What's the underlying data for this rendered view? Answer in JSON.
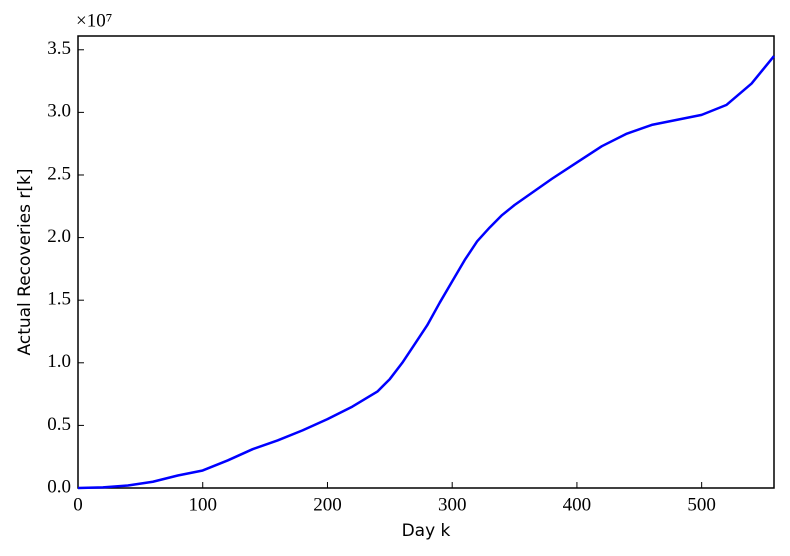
{
  "chart_data": {
    "type": "line",
    "xlabel": "Day k",
    "ylabel": "Actual Recoveries r[k]",
    "y_scale_label": "×10⁷",
    "color": "#0000ff",
    "x": [
      0,
      20,
      40,
      60,
      80,
      100,
      120,
      140,
      160,
      180,
      200,
      220,
      240,
      250,
      260,
      270,
      280,
      290,
      300,
      310,
      320,
      330,
      340,
      350,
      360,
      380,
      400,
      420,
      440,
      460,
      480,
      500,
      520,
      540,
      558
    ],
    "values": [
      0,
      0.005,
      0.02,
      0.05,
      0.1,
      0.14,
      0.22,
      0.31,
      0.38,
      0.46,
      0.55,
      0.65,
      0.77,
      0.87,
      1.0,
      1.15,
      1.3,
      1.48,
      1.65,
      1.82,
      1.97,
      2.08,
      2.18,
      2.26,
      2.33,
      2.47,
      2.6,
      2.73,
      2.83,
      2.9,
      2.94,
      2.98,
      3.06,
      3.23,
      3.45
    ],
    "xlim": [
      0,
      558
    ],
    "ylim": [
      0,
      3.61
    ],
    "xticks": [
      0,
      100,
      200,
      300,
      400,
      500
    ],
    "yticks": [
      {
        "value": 0,
        "label": "0.0"
      },
      0.5,
      {
        "value": 1,
        "label": "1.0"
      },
      1.5,
      {
        "value": 2,
        "label": "2.0"
      },
      2.5,
      {
        "value": 3,
        "label": "3.0"
      },
      3.5
    ]
  }
}
